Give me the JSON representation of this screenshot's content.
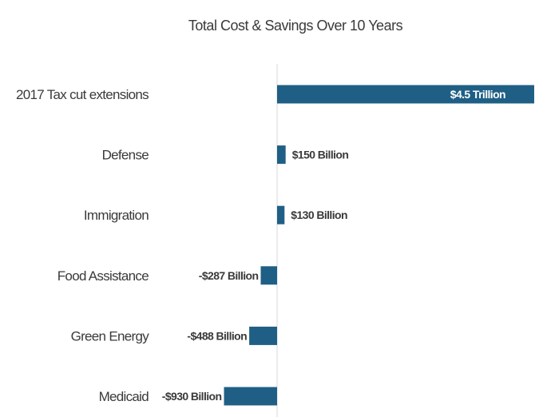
{
  "chart_data": {
    "type": "bar",
    "orientation": "horizontal",
    "title": "Total Cost & Savings Over 10 Years",
    "xlabel": "",
    "ylabel": "",
    "unit": "billion USD",
    "categories": [
      "2017 Tax cut extensions",
      "Defense",
      "Immigration",
      "Food Assistance",
      "Green Energy",
      "Medicaid"
    ],
    "values": [
      4500,
      150,
      130,
      -287,
      -488,
      -930
    ],
    "data_labels": [
      "$4.5 Trillion",
      "$150 Billion",
      "$130 Billion",
      "-$287 Billion",
      "-$488 Billion",
      "-$930 Billion"
    ],
    "xlim": [
      -1000,
      4500
    ],
    "grid": false,
    "legend": "none",
    "bar_color": "#1f5f85"
  }
}
